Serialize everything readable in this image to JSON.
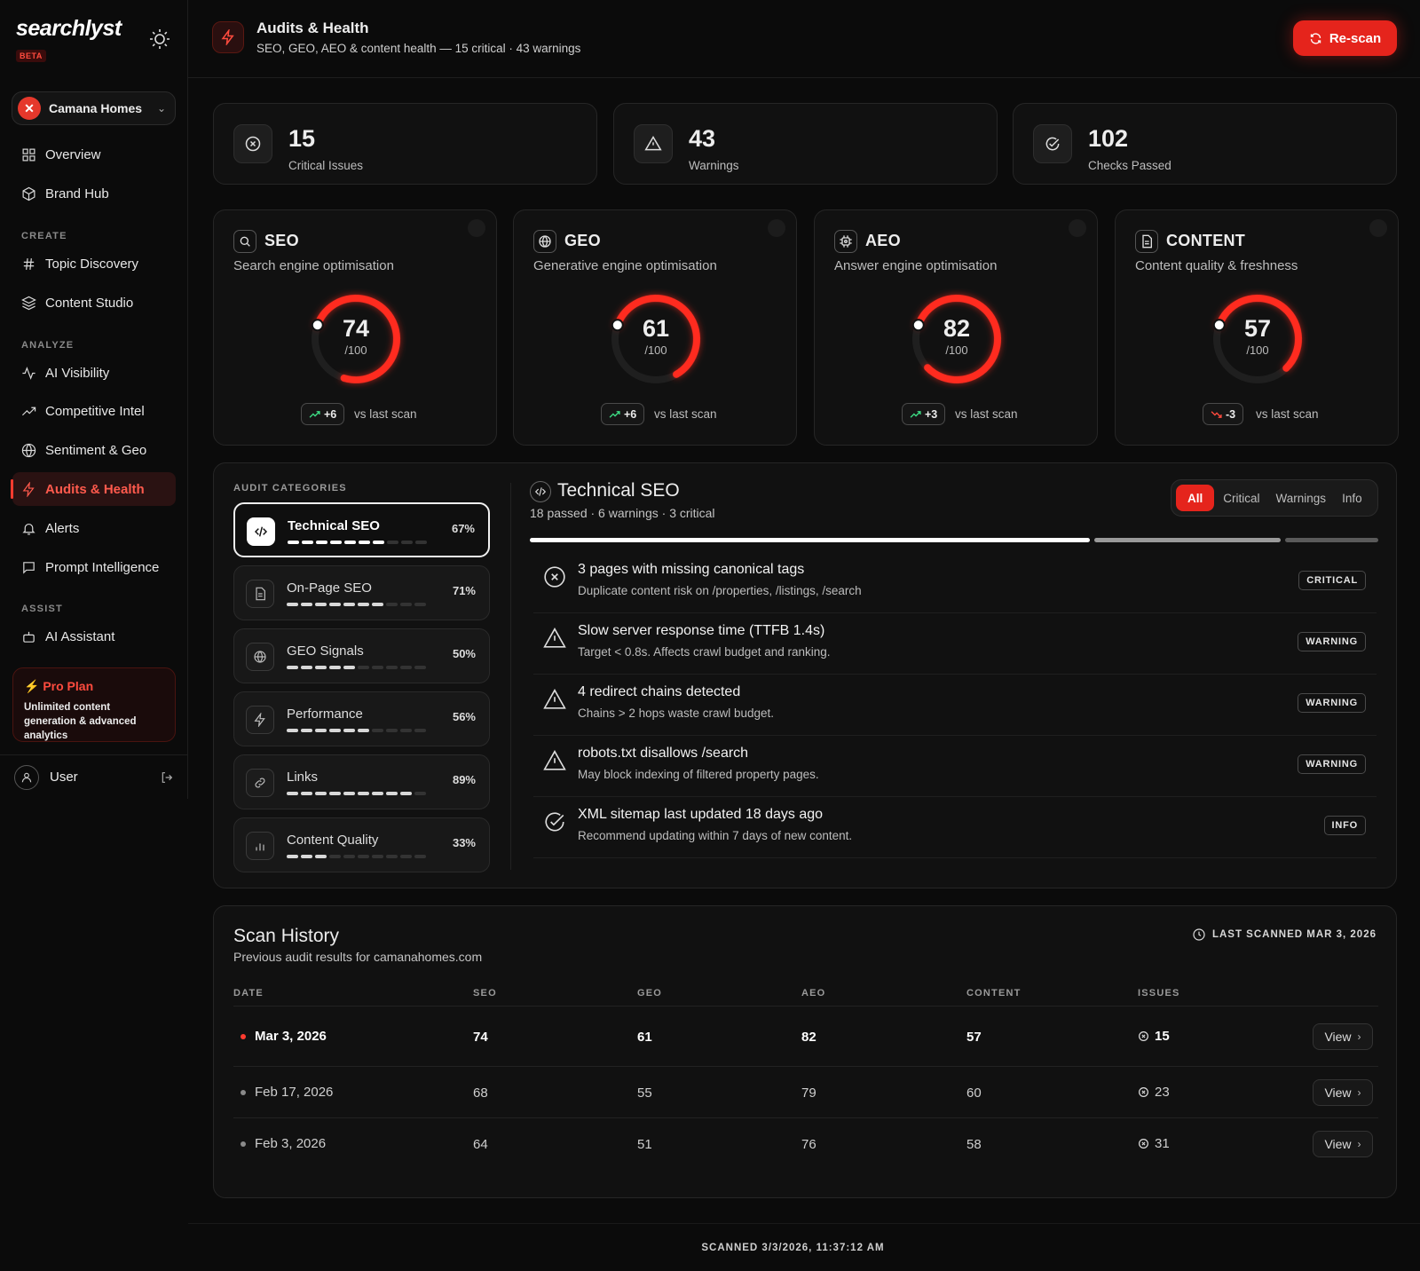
{
  "brand": {
    "logo": "searchlyst",
    "badge": "BETA"
  },
  "workspace": {
    "initial": "✕",
    "name": "Camana Homes"
  },
  "nav": {
    "overview": "Overview",
    "brand_hub": "Brand Hub",
    "create_label": "CREATE",
    "topic_discovery": "Topic Discovery",
    "content_studio": "Content Studio",
    "analyze_label": "ANALYZE",
    "ai_visibility": "AI Visibility",
    "competitive_intel": "Competitive Intel",
    "sentiment_geo": "Sentiment & Geo",
    "audits_health": "Audits & Health",
    "alerts": "Alerts",
    "prompt_intelligence": "Prompt Intelligence",
    "assist_label": "ASSIST",
    "ai_assistant": "AI Assistant"
  },
  "pro_plan": {
    "title": "Pro Plan",
    "desc": "Unlimited content generation & advanced analytics"
  },
  "user": {
    "name": "User"
  },
  "header": {
    "title": "Audits & Health",
    "subtitle": "SEO, GEO, AEO & content health — 15 critical · 43 warnings",
    "rescan": "Re-scan"
  },
  "stats": [
    {
      "value": "15",
      "label": "Critical Issues",
      "icon": "x-circle-icon"
    },
    {
      "value": "43",
      "label": "Warnings",
      "icon": "warning-triangle-icon"
    },
    {
      "value": "102",
      "label": "Checks Passed",
      "icon": "check-circle-icon"
    }
  ],
  "scores": [
    {
      "name": "SEO",
      "subtitle": "Search engine optimisation",
      "score": 74,
      "of": "/100",
      "delta": "+6",
      "trend": "up",
      "vs": "vs last scan"
    },
    {
      "name": "GEO",
      "subtitle": "Generative engine optimisation",
      "score": 61,
      "of": "/100",
      "delta": "+6",
      "trend": "up",
      "vs": "vs last scan"
    },
    {
      "name": "AEO",
      "subtitle": "Answer engine optimisation",
      "score": 82,
      "of": "/100",
      "delta": "+3",
      "trend": "up",
      "vs": "vs last scan"
    },
    {
      "name": "CONTENT",
      "subtitle": "Content quality & freshness",
      "score": 57,
      "of": "/100",
      "delta": "-3",
      "trend": "down",
      "vs": "vs last scan"
    }
  ],
  "categories_label": "AUDIT CATEGORIES",
  "categories": [
    {
      "name": "Technical SEO",
      "pct": "67%",
      "value": 67
    },
    {
      "name": "On-Page SEO",
      "pct": "71%",
      "value": 71
    },
    {
      "name": "GEO Signals",
      "pct": "50%",
      "value": 50
    },
    {
      "name": "Performance",
      "pct": "56%",
      "value": 56
    },
    {
      "name": "Links",
      "pct": "89%",
      "value": 89
    },
    {
      "name": "Content Quality",
      "pct": "33%",
      "value": 33
    }
  ],
  "detail": {
    "title": "Technical SEO",
    "subtitle": "18 passed · 6 warnings · 3 critical",
    "passed": 18,
    "warnings": 6,
    "critical": 3,
    "filters": [
      "All",
      "Critical",
      "Warnings",
      "Info"
    ],
    "issues": [
      {
        "title": "3 pages with missing canonical tags",
        "desc": "Duplicate content risk on /properties, /listings, /search",
        "tag": "CRITICAL",
        "icon": "x-circle-icon"
      },
      {
        "title": "Slow server response time (TTFB 1.4s)",
        "desc": "Target < 0.8s. Affects crawl budget and ranking.",
        "tag": "WARNING",
        "icon": "warning-triangle-icon"
      },
      {
        "title": "4 redirect chains detected",
        "desc": "Chains > 2 hops waste crawl budget.",
        "tag": "WARNING",
        "icon": "warning-triangle-icon"
      },
      {
        "title": "robots.txt disallows /search",
        "desc": "May block indexing of filtered property pages.",
        "tag": "WARNING",
        "icon": "warning-triangle-icon"
      },
      {
        "title": "XML sitemap last updated 18 days ago",
        "desc": "Recommend updating within 7 days of new content.",
        "tag": "INFO",
        "icon": "check-circle-icon"
      }
    ]
  },
  "history": {
    "title": "Scan History",
    "subtitle": "Previous audit results for camanahomes.com",
    "last_scanned": "LAST SCANNED MAR 3, 2026",
    "columns": [
      "DATE",
      "SEO",
      "GEO",
      "AEO",
      "CONTENT",
      "ISSUES"
    ],
    "rows": [
      {
        "date": "Mar 3, 2026",
        "seo": "74",
        "geo": "61",
        "aeo": "82",
        "content": "57",
        "issues": "15",
        "view": "View"
      },
      {
        "date": "Feb 17, 2026",
        "seo": "68",
        "geo": "55",
        "aeo": "79",
        "content": "60",
        "issues": "23",
        "view": "View"
      },
      {
        "date": "Feb 3, 2026",
        "seo": "64",
        "geo": "51",
        "aeo": "76",
        "content": "58",
        "issues": "31",
        "view": "View"
      }
    ]
  },
  "footer": "SCANNED 3/3/2026, 11:37:12 AM",
  "colors": {
    "accent": "#e5241c",
    "positive": "#3ddc84",
    "negative": "#ff4b3e"
  }
}
